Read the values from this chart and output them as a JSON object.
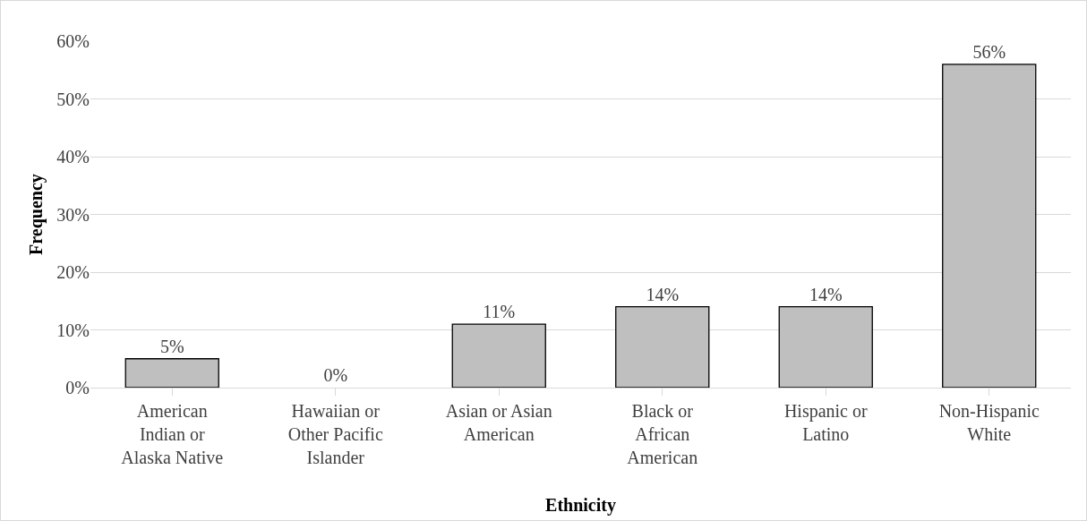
{
  "chart_data": {
    "type": "bar",
    "xlabel": "Ethnicity",
    "ylabel": "Frequency",
    "categories": [
      "American Indian or Alaska Native",
      "Hawaiian or Other Pacific Islander",
      "Asian or Asian American",
      "Black or African American",
      "Hispanic or Latino",
      "Non-Hispanic White"
    ],
    "values": [
      5,
      0,
      11,
      14,
      14,
      56
    ],
    "value_labels": [
      "5%",
      "0%",
      "11%",
      "14%",
      "14%",
      "56%"
    ],
    "color": "#bfbfbf",
    "ylim": [
      0,
      60
    ],
    "yticks": [
      {
        "value": 0,
        "label": "0%"
      },
      {
        "value": 10,
        "label": "10%"
      },
      {
        "value": 20,
        "label": "20%"
      },
      {
        "value": 30,
        "label": "30%"
      },
      {
        "value": 40,
        "label": "40%"
      },
      {
        "value": 50,
        "label": "50%"
      },
      {
        "value": 60,
        "label": "60%"
      }
    ],
    "grid": "y"
  }
}
